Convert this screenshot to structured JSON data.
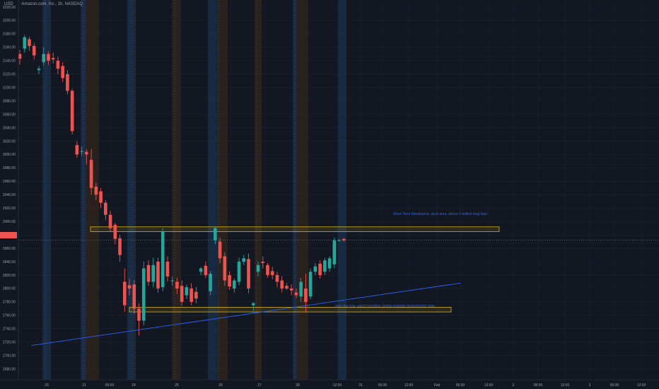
{
  "header": {
    "currency": "USD",
    "instrument": "Amazon.com, Inc., 1h, NASDAQ"
  },
  "last_price_label": "",
  "colors": {
    "background": "#131722",
    "up": "#26a69a",
    "down": "#ef5350",
    "grid": "#1f2433",
    "axis_text": "#9aa0ac",
    "session_blue": "#1d3a5c",
    "session_brown": "#3a2a1c",
    "zone_border": "#d4b21c",
    "trendline": "#2962ff",
    "price_line": "#ef5350"
  },
  "chart_data": {
    "type": "candlestick",
    "title": "Amazon.com, Inc., 1h, NASDAQ",
    "ylabel": "USD",
    "ylim": [
      2670,
      3240
    ],
    "y_ticks": [
      2680,
      2700,
      2720,
      2740,
      2760,
      2780,
      2800,
      2820,
      2840,
      2860,
      2880,
      2900,
      2920,
      2940,
      2960,
      2980,
      3000,
      3020,
      3040,
      3060,
      3080,
      3100,
      3120,
      3140,
      3160,
      3180,
      3200,
      3220
    ],
    "x_tick_labels": [
      "20",
      "21",
      "09:00",
      "24",
      "25",
      "26",
      "27",
      "28",
      "12:00",
      "31",
      "06:00",
      "12:00",
      "Feb",
      "06:00",
      "12:00",
      "2",
      "06:00",
      "12:00",
      "3",
      "06:00",
      "12:00"
    ],
    "grid": true,
    "candles": [
      {
        "o": 3150,
        "h": 3156,
        "c": 3143,
        "l": 3134
      },
      {
        "o": 3158,
        "h": 3178,
        "c": 3175,
        "l": 3152
      },
      {
        "o": 3172,
        "h": 3176,
        "c": 3162,
        "l": 3155
      },
      {
        "o": 3162,
        "h": 3166,
        "c": 3148,
        "l": 3142
      },
      {
        "o": 3126,
        "h": 3132,
        "c": 3128,
        "l": 3120
      },
      {
        "o": 3138,
        "h": 3160,
        "c": 3150,
        "l": 3133
      },
      {
        "o": 3150,
        "h": 3154,
        "c": 3140,
        "l": 3134
      },
      {
        "o": 3144,
        "h": 3152,
        "c": 3142,
        "l": 3136
      },
      {
        "o": 3140,
        "h": 3146,
        "c": 3128,
        "l": 3120
      },
      {
        "o": 3132,
        "h": 3138,
        "c": 3114,
        "l": 3108
      },
      {
        "o": 3120,
        "h": 3126,
        "c": 3095,
        "l": 3090
      },
      {
        "o": 3095,
        "h": 3098,
        "c": 3035,
        "l": 3030
      },
      {
        "o": 3014,
        "h": 3020,
        "c": 3000,
        "l": 2995
      },
      {
        "o": 3005,
        "h": 3012,
        "c": 3005,
        "l": 2998
      },
      {
        "o": 3004,
        "h": 3008,
        "c": 3000,
        "l": 2985
      },
      {
        "o": 2992,
        "h": 3008,
        "c": 2950,
        "l": 2940
      },
      {
        "o": 2952,
        "h": 2958,
        "c": 2940,
        "l": 2932
      },
      {
        "o": 2945,
        "h": 2950,
        "c": 2928,
        "l": 2920
      },
      {
        "o": 2928,
        "h": 2932,
        "c": 2910,
        "l": 2902
      },
      {
        "o": 2910,
        "h": 2916,
        "c": 2890,
        "l": 2884
      },
      {
        "o": 2895,
        "h": 2898,
        "c": 2874,
        "l": 2866
      },
      {
        "o": 2875,
        "h": 2880,
        "c": 2850,
        "l": 2840
      },
      {
        "o": 2810,
        "h": 2830,
        "c": 2775,
        "l": 2765
      },
      {
        "o": 2805,
        "h": 2815,
        "c": 2800,
        "l": 2790
      },
      {
        "o": 2806,
        "h": 2812,
        "c": 2770,
        "l": 2762
      },
      {
        "o": 2770,
        "h": 2778,
        "c": 2752,
        "l": 2730
      },
      {
        "o": 2752,
        "h": 2840,
        "c": 2830,
        "l": 2745
      },
      {
        "o": 2835,
        "h": 2842,
        "c": 2810,
        "l": 2804
      },
      {
        "o": 2810,
        "h": 2846,
        "c": 2835,
        "l": 2802
      },
      {
        "o": 2840,
        "h": 2846,
        "c": 2800,
        "l": 2794
      },
      {
        "o": 2802,
        "h": 2890,
        "c": 2885,
        "l": 2796
      },
      {
        "o": 2840,
        "h": 2848,
        "c": 2818,
        "l": 2810
      },
      {
        "o": 2812,
        "h": 2818,
        "c": 2812,
        "l": 2804
      },
      {
        "o": 2810,
        "h": 2816,
        "c": 2800,
        "l": 2792
      },
      {
        "o": 2804,
        "h": 2812,
        "c": 2780,
        "l": 2774
      },
      {
        "o": 2790,
        "h": 2806,
        "c": 2802,
        "l": 2784
      },
      {
        "o": 2800,
        "h": 2808,
        "c": 2780,
        "l": 2775
      },
      {
        "o": 2795,
        "h": 2802,
        "c": 2785,
        "l": 2778
      },
      {
        "o": 2825,
        "h": 2832,
        "c": 2830,
        "l": 2820
      },
      {
        "o": 2834,
        "h": 2840,
        "c": 2820,
        "l": 2816
      },
      {
        "o": 2796,
        "h": 2826,
        "c": 2822,
        "l": 2790
      },
      {
        "o": 2872,
        "h": 2892,
        "c": 2890,
        "l": 2866
      },
      {
        "o": 2870,
        "h": 2876,
        "c": 2845,
        "l": 2838
      },
      {
        "o": 2848,
        "h": 2854,
        "c": 2812,
        "l": 2804
      },
      {
        "o": 2820,
        "h": 2826,
        "c": 2803,
        "l": 2798
      },
      {
        "o": 2800,
        "h": 2815,
        "c": 2812,
        "l": 2794
      },
      {
        "o": 2810,
        "h": 2846,
        "c": 2840,
        "l": 2805
      },
      {
        "o": 2840,
        "h": 2850,
        "c": 2845,
        "l": 2835
      },
      {
        "o": 2844,
        "h": 2852,
        "c": 2800,
        "l": 2793
      },
      {
        "o": 2775,
        "h": 2780,
        "c": 2778,
        "l": 2764
      },
      {
        "o": 2825,
        "h": 2840,
        "c": 2835,
        "l": 2818
      },
      {
        "o": 2840,
        "h": 2848,
        "c": 2838,
        "l": 2830
      },
      {
        "o": 2835,
        "h": 2838,
        "c": 2820,
        "l": 2816
      },
      {
        "o": 2826,
        "h": 2832,
        "c": 2820,
        "l": 2814
      },
      {
        "o": 2820,
        "h": 2825,
        "c": 2810,
        "l": 2802
      },
      {
        "o": 2812,
        "h": 2818,
        "c": 2800,
        "l": 2794
      },
      {
        "o": 2804,
        "h": 2808,
        "c": 2800,
        "l": 2798
      },
      {
        "o": 2800,
        "h": 2806,
        "c": 2797,
        "l": 2790
      },
      {
        "o": 2794,
        "h": 2800,
        "c": 2790,
        "l": 2786
      },
      {
        "o": 2788,
        "h": 2816,
        "c": 2810,
        "l": 2780
      },
      {
        "o": 2800,
        "h": 2822,
        "c": 2780,
        "l": 2764
      },
      {
        "o": 2788,
        "h": 2830,
        "c": 2825,
        "l": 2784
      },
      {
        "o": 2825,
        "h": 2838,
        "c": 2833,
        "l": 2820
      },
      {
        "o": 2837,
        "h": 2842,
        "c": 2820,
        "l": 2815
      },
      {
        "o": 2825,
        "h": 2846,
        "c": 2842,
        "l": 2820
      },
      {
        "o": 2830,
        "h": 2848,
        "c": 2845,
        "l": 2825
      },
      {
        "o": 2836,
        "h": 2876,
        "c": 2872,
        "l": 2830
      },
      {
        "o": 2872,
        "h": 2874,
        "c": 2872,
        "l": 2870
      },
      {
        "o": 2874,
        "h": 2875,
        "c": 2872,
        "l": 2870
      }
    ],
    "zones": [
      {
        "label": "Short Term Resistance, pivot area, above = bullish long bias",
        "y1": 2892,
        "y2": 2885
      },
      {
        "label": "prior day low, watch trendline, below possible bearish/short bias",
        "y1": 2772,
        "y2": 2765
      }
    ],
    "trendline": {
      "from": [
        2,
        2715
      ],
      "to": [
        59,
        2808
      ]
    },
    "last_price": 2872
  },
  "annotations": {
    "resistance": "Short Term Resistance, pivot area, above = bullish long bias",
    "support": "prior day low, watch trendline, below possible bearish/short bias"
  }
}
